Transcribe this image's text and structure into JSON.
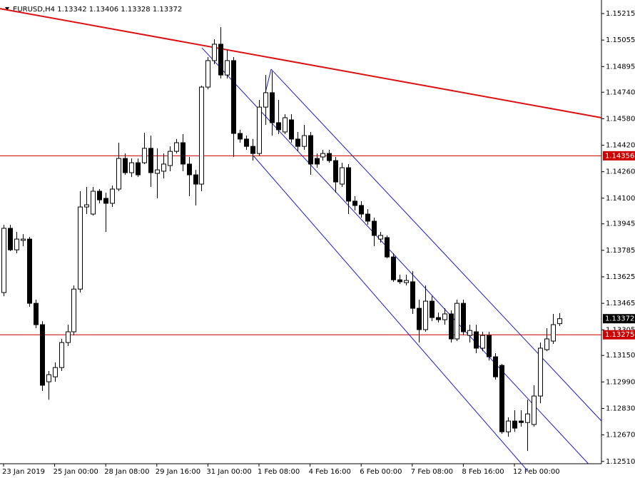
{
  "chart_data": {
    "type": "candlestick",
    "symbol": "EURUSD,H4",
    "categories": [
      "23 Jan 2019",
      null,
      null,
      null,
      null,
      null,
      null,
      null,
      "25 Jan 00:00",
      null,
      null,
      null,
      null,
      null,
      null,
      null,
      "28 Jan 08:00",
      null,
      null,
      null,
      null,
      null,
      null,
      null,
      "29 Jan 16:00",
      null,
      null,
      null,
      null,
      null,
      null,
      null,
      "31 Jan 00:00",
      null,
      null,
      null,
      null,
      null,
      null,
      null,
      "1 Feb 08:00",
      null,
      null,
      null,
      null,
      null,
      null,
      null,
      "4 Feb 16:00",
      null,
      null,
      null,
      null,
      null,
      null,
      null,
      "6 Feb 00:00",
      null,
      null,
      null,
      null,
      null,
      null,
      null,
      "7 Feb 08:00",
      null,
      null,
      null,
      null,
      null,
      null,
      null,
      "8 Feb 16:00",
      null,
      null,
      null,
      null,
      null,
      null,
      null,
      "12 Feb 00:00",
      null,
      null,
      null,
      null,
      null,
      null,
      null
    ],
    "open": [
      1.1353,
      1.13918,
      1.13788,
      1.13845,
      1.13853,
      1.13465,
      1.13336,
      1.12991,
      1.13021,
      1.13077,
      1.13228,
      1.13293,
      1.13551,
      1.14047,
      1.14004,
      1.14142,
      1.14099,
      1.14069,
      1.14155,
      1.1434,
      1.14254,
      1.14314,
      1.14314,
      1.14401,
      1.1425,
      1.14263,
      1.14297,
      1.14383,
      1.14435,
      1.14306,
      1.14241,
      1.14185,
      1.14771,
      1.14931,
      1.1503,
      1.14844,
      1.14931,
      1.14491,
      1.14457,
      1.14413,
      1.1437,
      1.1465,
      1.14737,
      1.14556,
      1.145,
      1.14573,
      1.14457,
      1.14413,
      1.14478,
      1.1434,
      1.14349,
      1.1437,
      1.14327,
      1.14185,
      1.14284,
      1.14082,
      1.14056,
      1.14004,
      1.13961,
      1.13853,
      1.13862,
      1.13745,
      1.13607,
      1.1359,
      1.13595,
      1.13435,
      1.13306,
      1.13478,
      1.13379,
      1.13366,
      1.13401,
      1.1325,
      1.13465,
      1.13271,
      1.13293,
      1.13194,
      1.13271,
      1.13142,
      1.1309,
      1.12689,
      1.12754,
      1.12754,
      1.12745,
      1.12733,
      1.12905,
      1.13185,
      1.13237,
      1.13342
    ],
    "high": [
      1.13939,
      1.13939,
      1.13896,
      1.13883,
      1.13866,
      1.13487,
      1.13357,
      1.13056,
      1.13108,
      1.1325,
      1.13336,
      1.13573,
      1.14142,
      1.14168,
      1.14168,
      1.14155,
      1.14133,
      1.14176,
      1.14435,
      1.1437,
      1.1434,
      1.1434,
      1.14495,
      1.14478,
      1.14401,
      1.1437,
      1.14413,
      1.14457,
      1.14487,
      1.14349,
      1.14271,
      1.1478,
      1.14952,
      1.1506,
      1.15133,
      1.14995,
      1.14952,
      1.14513,
      1.14478,
      1.14457,
      1.14694,
      1.14844,
      1.14866,
      1.14694,
      1.14607,
      1.14607,
      1.145,
      1.14543,
      1.145,
      1.1437,
      1.14392,
      1.14392,
      1.14349,
      1.14314,
      1.14306,
      1.14112,
      1.14082,
      1.14034,
      1.13982,
      1.13896,
      1.13875,
      1.13767,
      1.13638,
      1.13638,
      1.13659,
      1.13487,
      1.13573,
      1.13508,
      1.13409,
      1.13435,
      1.13422,
      1.13487,
      1.13487,
      1.13336,
      1.13336,
      1.13293,
      1.13293,
      1.13164,
      1.13099,
      1.12776,
      1.12819,
      1.12819,
      1.12883,
      1.1297,
      1.13228,
      1.13314,
      1.13401,
      1.13406
    ],
    "low": [
      1.13508,
      1.1378,
      1.13767,
      1.1381,
      1.13444,
      1.13314,
      1.12935,
      1.12883,
      1.12991,
      1.13056,
      1.13207,
      1.13271,
      1.1353,
      1.14004,
      1.13995,
      1.14069,
      1.13896,
      1.14047,
      1.14142,
      1.14241,
      1.14228,
      1.14228,
      1.14306,
      1.14168,
      1.14099,
      1.14219,
      1.14263,
      1.1437,
      1.14263,
      1.14112,
      1.14056,
      1.14142,
      1.14758,
      1.14909,
      1.14823,
      1.14823,
      1.14349,
      1.14435,
      1.14392,
      1.14327,
      1.14357,
      1.14543,
      1.14478,
      1.14487,
      1.14487,
      1.14435,
      1.14383,
      1.14392,
      1.14241,
      1.14284,
      1.14327,
      1.14314,
      1.14133,
      1.14168,
      1.14004,
      1.14026,
      1.13982,
      1.13939,
      1.1381,
      1.13832,
      1.13737,
      1.13595,
      1.13582,
      1.13573,
      1.13401,
      1.13228,
      1.13293,
      1.13357,
      1.13349,
      1.13336,
      1.13228,
      1.13237,
      1.13271,
      1.13228,
      1.13164,
      1.13176,
      1.1312,
      1.13004,
      1.12677,
      1.12659,
      1.12689,
      1.1272,
      1.12573,
      1.1272,
      1.12862,
      1.13176,
      1.1322,
      1.13328
    ],
    "close": [
      1.13918,
      1.13788,
      1.13853,
      1.13853,
      1.13465,
      1.13336,
      1.1297,
      1.13034,
      1.13077,
      1.13228,
      1.13293,
      1.13551,
      1.14047,
      1.1406,
      1.14142,
      1.1409,
      1.14069,
      1.14155,
      1.1434,
      1.14254,
      1.14314,
      1.14241,
      1.14401,
      1.14254,
      1.14271,
      1.14306,
      1.14383,
      1.14435,
      1.14306,
      1.14241,
      1.14185,
      1.14771,
      1.14931,
      1.1503,
      1.14844,
      1.14931,
      1.14491,
      1.14457,
      1.14413,
      1.1437,
      1.1465,
      1.14737,
      1.14556,
      1.14513,
      1.14586,
      1.14457,
      1.14413,
      1.14478,
      1.14306,
      1.14306,
      1.1437,
      1.14327,
      1.14198,
      1.14284,
      1.14082,
      1.14056,
      1.14004,
      1.13961,
      1.13875,
      1.13875,
      1.13745,
      1.13607,
      1.13595,
      1.13603,
      1.13435,
      1.13306,
      1.13478,
      1.13379,
      1.13366,
      1.13401,
      1.1325,
      1.13465,
      1.13293,
      1.13301,
      1.13194,
      1.13271,
      1.13142,
      1.13021,
      1.12689,
      1.12754,
      1.12711,
      1.12745,
      1.12797,
      1.12905,
      1.13194,
      1.1325,
      1.13336,
      1.13372
    ],
    "up_color": "#ffffff",
    "down_color": "#000000",
    "ylim": [
      1.12496,
      1.15297
    ],
    "yticks": [
      1.15215,
      1.15055,
      1.14895,
      {
        "value": 1.1474,
        "label": "1.14740"
      },
      {
        "value": 1.1458,
        "label": "1.14580"
      },
      {
        "value": 1.1442,
        "label": "1.14420"
      },
      {
        "value": 1.1426,
        "label": "1.14260"
      },
      {
        "value": 1.141,
        "label": "1.14100"
      },
      1.13945,
      1.13785,
      1.13625,
      1.13465,
      1.13305,
      {
        "value": 1.1315,
        "label": "1.13150"
      },
      {
        "value": 1.1299,
        "label": "1.12990"
      },
      {
        "value": 1.1283,
        "label": "1.12830"
      },
      {
        "value": 1.1267,
        "label": "1.12670"
      },
      {
        "value": 1.1251,
        "label": "1.12510"
      }
    ],
    "hlines": [
      {
        "value": 1.14356,
        "color": "#cc0000"
      },
      {
        "value": 1.13275,
        "color": "#cc0000"
      }
    ],
    "trendlines": [
      {
        "color": "#dd1111",
        "x": [
          -0.56,
          93.63
        ],
        "y": [
          1.15245,
          1.14586
        ]
      },
      {
        "color": "#1a1acc",
        "x": [
          41.9,
          93.63
        ],
        "y": [
          1.14879,
          1.12754
        ]
      },
      {
        "color": "#1a1acc",
        "x": [
          31.06,
          91.6
        ],
        "y": [
          1.15008,
          1.12495
        ]
      },
      {
        "color": "#1a1acc",
        "x": [
          39.1,
          82.1
        ],
        "y": [
          1.14357,
          1.12452
        ]
      },
      {
        "color": "#1a1acc",
        "x": [
          41.0,
          41.9
        ],
        "y": [
          1.14737,
          1.14879
        ]
      }
    ],
    "grid": false
  }
}
